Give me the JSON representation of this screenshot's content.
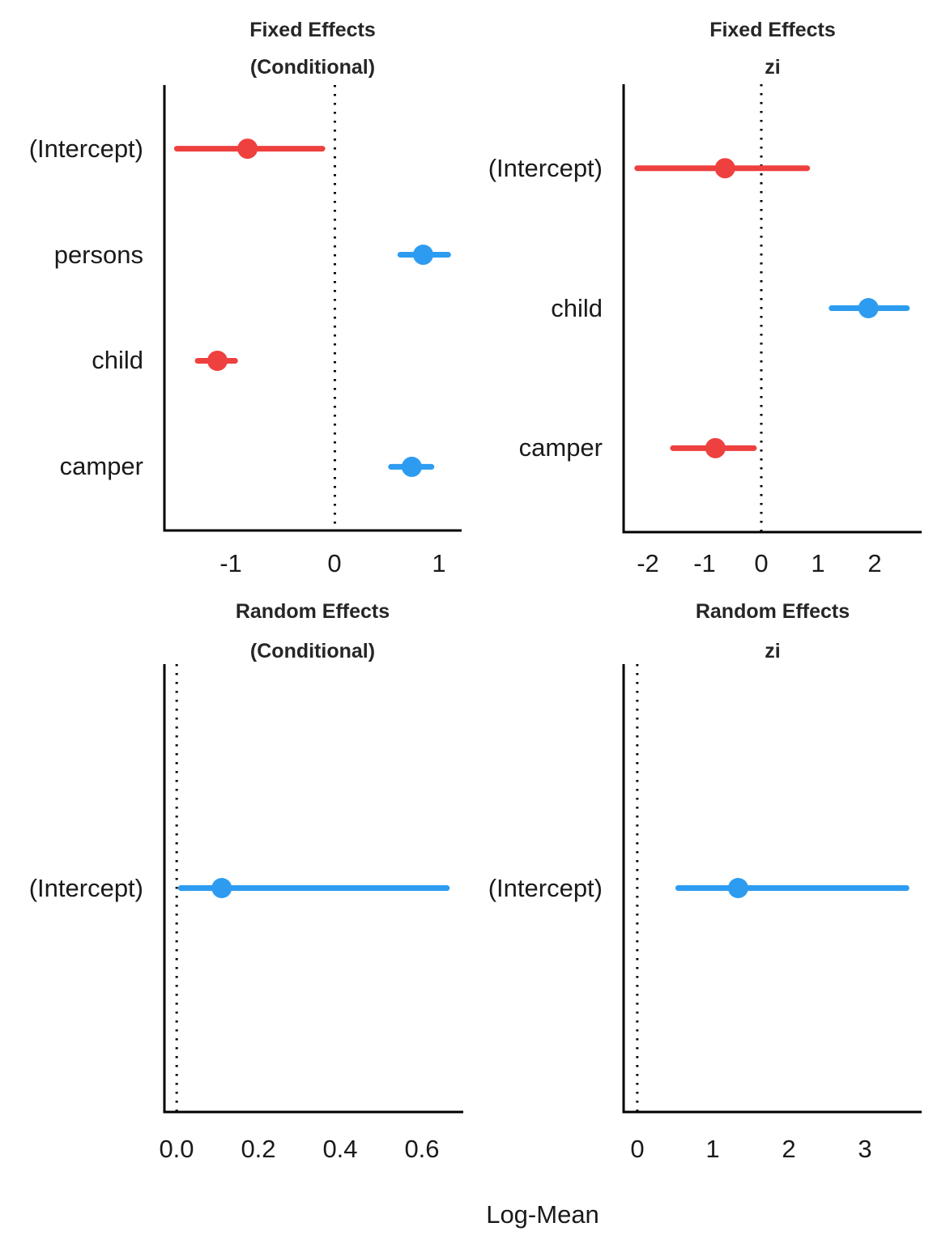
{
  "figure": {
    "xlabel": "Log-Mean",
    "background": "#ffffff",
    "text_color": "#1a1a1a",
    "title_color": "#262626",
    "axis_color": "#000000",
    "positive_color": "#2d9cf0",
    "negative_color": "#ee403e"
  },
  "chart_data": [
    {
      "type": "forest",
      "title": "Fixed Effects",
      "subtitle": "(Conditional)",
      "xlim": [
        -1.64,
        1.22
      ],
      "xticks": [
        -1,
        0,
        1
      ],
      "xtick_labels": [
        "-1",
        "0",
        "1"
      ],
      "zero_line": 0,
      "grid": false,
      "rows": [
        {
          "label": "(Intercept)",
          "estimate": -0.84,
          "ci_low": -1.52,
          "ci_high": -0.12,
          "direction": "negative"
        },
        {
          "label": "persons",
          "estimate": 0.85,
          "ci_low": 0.63,
          "ci_high": 1.09,
          "direction": "positive"
        },
        {
          "label": "child",
          "estimate": -1.13,
          "ci_low": -1.32,
          "ci_high": -0.96,
          "direction": "negative"
        },
        {
          "label": "camper",
          "estimate": 0.74,
          "ci_low": 0.54,
          "ci_high": 0.93,
          "direction": "positive"
        }
      ]
    },
    {
      "type": "forest",
      "title": "Fixed Effects",
      "subtitle": "zi",
      "xlim": [
        -2.43,
        2.83
      ],
      "xticks": [
        -2,
        -1,
        0,
        1,
        2
      ],
      "xtick_labels": [
        "-2",
        "-1",
        "0",
        "1",
        "2"
      ],
      "zero_line": 0,
      "grid": false,
      "rows": [
        {
          "label": "(Intercept)",
          "estimate": -0.64,
          "ci_low": -2.19,
          "ci_high": 0.81,
          "direction": "negative"
        },
        {
          "label": "child",
          "estimate": 1.89,
          "ci_low": 1.24,
          "ci_high": 2.57,
          "direction": "positive"
        },
        {
          "label": "camper",
          "estimate": -0.81,
          "ci_low": -1.56,
          "ci_high": -0.13,
          "direction": "negative"
        }
      ]
    },
    {
      "type": "forest",
      "title": "Random Effects",
      "subtitle": "(Conditional)",
      "xlim": [
        -0.03,
        0.7
      ],
      "xticks": [
        0,
        0.2,
        0.4,
        0.6
      ],
      "xtick_labels": [
        "0.0",
        "0.2",
        "0.4",
        "0.6"
      ],
      "zero_line": 0,
      "grid": false,
      "rows": [
        {
          "label": "(Intercept)",
          "estimate": 0.11,
          "ci_low": 0.01,
          "ci_high": 0.66,
          "direction": "positive"
        }
      ]
    },
    {
      "type": "forest",
      "title": "Random Effects",
      "subtitle": "zi",
      "xlim": [
        -0.18,
        3.75
      ],
      "xticks": [
        0,
        1,
        2,
        3
      ],
      "xtick_labels": [
        "0",
        "1",
        "2",
        "3"
      ],
      "zero_line": 0,
      "grid": false,
      "rows": [
        {
          "label": "(Intercept)",
          "estimate": 1.33,
          "ci_low": 0.54,
          "ci_high": 3.55,
          "direction": "positive"
        }
      ]
    }
  ]
}
